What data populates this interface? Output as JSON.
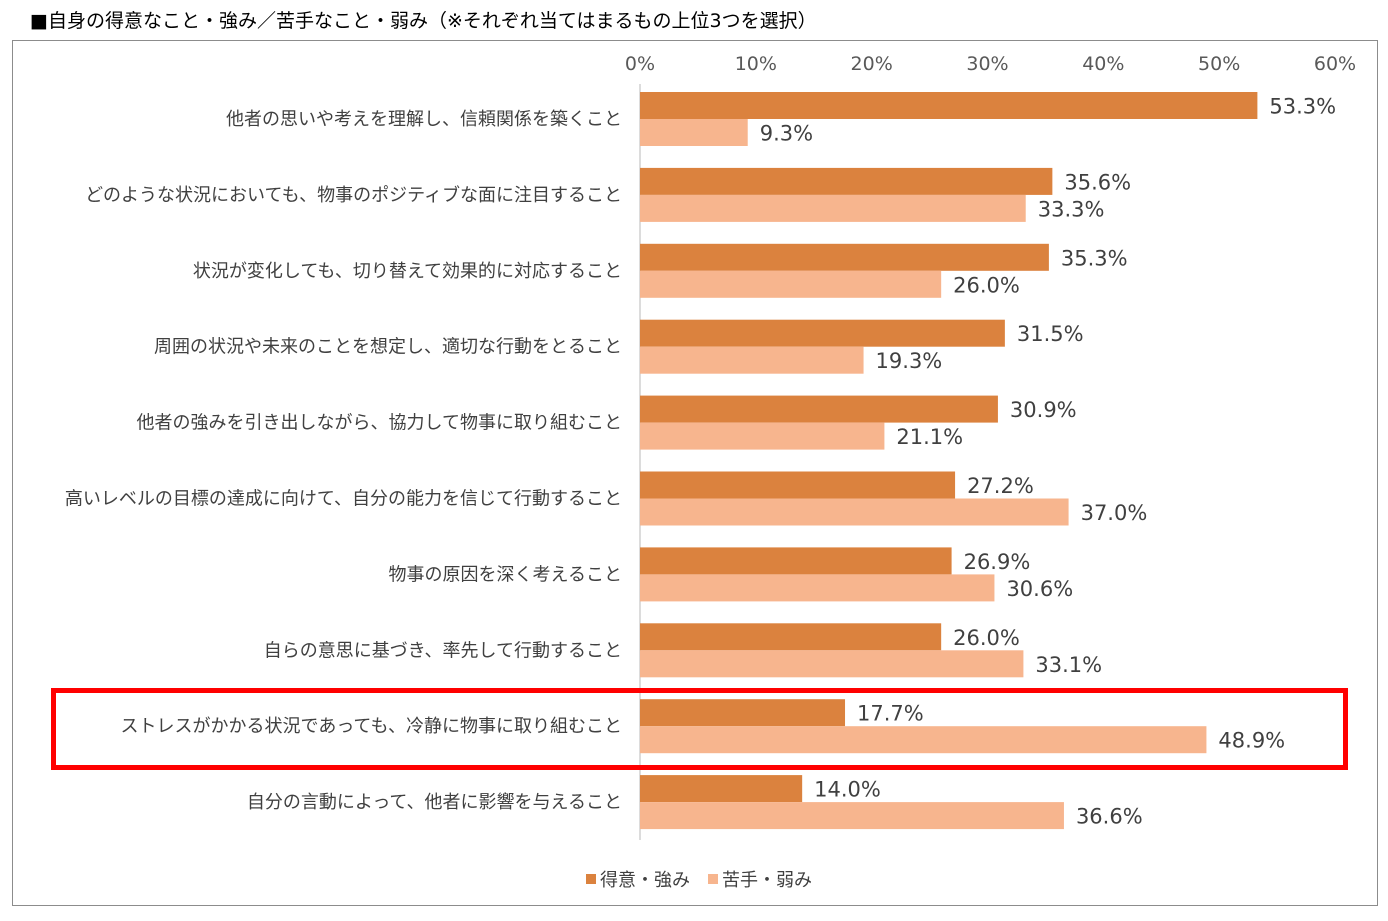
{
  "title": "■自身の得意なこと・強み／苦手なこと・弱み（※それぞれ当てはまるもの上位3つを選択）",
  "colors": {
    "strength": "#db823e",
    "weakness": "#f7b58e",
    "highlight": "#ff0000"
  },
  "chart_data": {
    "type": "bar",
    "orientation": "horizontal",
    "title": "■自身の得意なこと・強み／苦手なこと・弱み（※それぞれ当てはまるもの上位3つを選択）",
    "xlim": [
      0,
      60
    ],
    "xticks": [
      "0%",
      "10%",
      "20%",
      "30%",
      "40%",
      "50%",
      "60%"
    ],
    "categories": [
      "他者の思いや考えを理解し、信頼関係を築くこと",
      "どのような状況においても、物事のポジティブな面に注目すること",
      "状況が変化しても、切り替えて効果的に対応すること",
      "周囲の状況や未来のことを想定し、適切な行動をとること",
      "他者の強みを引き出しながら、協力して物事に取り組むこと",
      "高いレベルの目標の達成に向けて、自分の能力を信じて行動すること",
      "物事の原因を深く考えること",
      "自らの意思に基づき、率先して行動すること",
      "ストレスがかかる状況であっても、冷静に物事に取り組むこと",
      "自分の言動によって、他者に影響を与えること"
    ],
    "series": [
      {
        "name": "得意・強み",
        "values": [
          53.3,
          35.6,
          35.3,
          31.5,
          30.9,
          27.2,
          26.9,
          26.0,
          17.7,
          14.0
        ],
        "labels": [
          "53.3%",
          "35.6%",
          "35.3%",
          "31.5%",
          "30.9%",
          "27.2%",
          "26.9%",
          "26.0%",
          "17.7%",
          "14.0%"
        ]
      },
      {
        "name": "苦手・弱み",
        "values": [
          9.3,
          33.3,
          26.0,
          19.3,
          21.1,
          37.0,
          30.6,
          33.1,
          48.9,
          36.6
        ],
        "labels": [
          "9.3%",
          "33.3%",
          "26.0%",
          "19.3%",
          "21.1%",
          "37.0%",
          "30.6%",
          "33.1%",
          "48.9%",
          "36.6%"
        ]
      }
    ],
    "highlighted_category": "ストレスがかかる状況であっても、冷静に物事に取り組むこと",
    "legend_position": "bottom"
  },
  "legend": {
    "strength_label": "得意・強み",
    "weakness_label": "苦手・弱み"
  }
}
